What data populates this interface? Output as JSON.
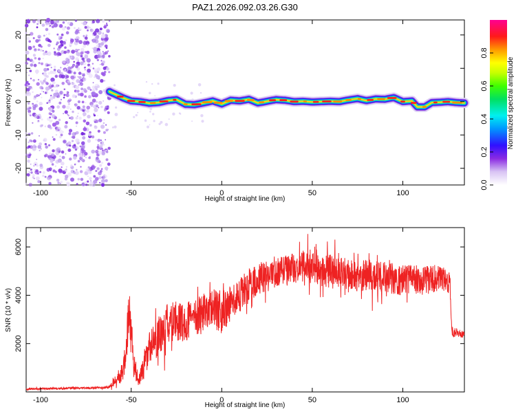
{
  "figure": {
    "title": "PAZ1.2026.092.03.26.G30"
  },
  "colors": {
    "snr_line": "#ee2222",
    "axis": "#000000",
    "background": "#ffffff"
  },
  "chart_data": [
    {
      "type": "heatmap",
      "name": "spectrogram",
      "title": "PAZ1.2026.092.03.26.G30",
      "xlabel": "Height of straight line (km)",
      "ylabel": "Frequency (Hz)",
      "xlim": [
        -108,
        134
      ],
      "ylim": [
        -25,
        24.5
      ],
      "x_ticks": [
        -100,
        -50,
        0,
        50,
        100
      ],
      "x_tick_labels": [
        "-100",
        "-50",
        "0",
        "50",
        "100"
      ],
      "y_ticks": [
        -20,
        -10,
        0,
        10,
        20
      ],
      "y_tick_labels": [
        "-20",
        "-10",
        "0",
        "10",
        "20"
      ],
      "noise_region_x": [
        -108,
        -62
      ],
      "signal_start_x": -62,
      "signal_track": {
        "x": [
          -62,
          -58,
          -54,
          -50,
          -45,
          -40,
          -35,
          -30,
          -25,
          -20,
          -15,
          -10,
          -5,
          0,
          5,
          10,
          15,
          20,
          25,
          30,
          35,
          40,
          45,
          50,
          55,
          60,
          65,
          70,
          75,
          80,
          85,
          90,
          95,
          100,
          105,
          108,
          112,
          116,
          120,
          125,
          130,
          134
        ],
        "y": [
          3.0,
          2.0,
          1.0,
          0.2,
          0.0,
          -0.5,
          -0.3,
          0.3,
          0.6,
          -0.8,
          -0.9,
          -0.4,
          0.2,
          -0.7,
          0.4,
          0.2,
          0.7,
          -0.4,
          0.1,
          0.6,
          0.4,
          0.0,
          0.1,
          -0.1,
          0.0,
          0.1,
          0.0,
          0.5,
          0.9,
          0.3,
          0.8,
          0.7,
          1.2,
          0.0,
          0.2,
          -1.6,
          -1.6,
          -0.3,
          -0.2,
          0.0,
          -0.3,
          -0.4
        ]
      },
      "colorbar": {
        "label": "Normalized spectral amplitude",
        "range": [
          0,
          1
        ],
        "ticks": [
          0.0,
          0.2,
          0.4,
          0.6,
          0.8
        ],
        "tick_labels": [
          "0.0",
          "0.2",
          "0.4",
          "0.6",
          "0.8"
        ]
      }
    },
    {
      "type": "line",
      "name": "snr",
      "xlabel": "Height of straight line (km)",
      "ylabel": "SNR (10 * v/v)",
      "xlim": [
        -108,
        134
      ],
      "ylim": [
        0,
        6800
      ],
      "x_ticks": [
        -100,
        -50,
        0,
        50,
        100
      ],
      "x_tick_labels": [
        "-100",
        "-50",
        "0",
        "50",
        "100"
      ],
      "y_ticks": [
        2000,
        4000,
        6000
      ],
      "y_tick_labels": [
        "2000",
        "4000",
        "6000"
      ],
      "envelope": {
        "x": [
          -108,
          -95,
          -80,
          -65,
          -62,
          -58,
          -55,
          -53,
          -52,
          -51,
          -50,
          -49,
          -48,
          -47,
          -46,
          -45,
          -43,
          -40,
          -35,
          -30,
          -25,
          -20,
          -15,
          -10,
          -5,
          0,
          5,
          10,
          15,
          20,
          25,
          30,
          35,
          40,
          45,
          50,
          55,
          60,
          65,
          70,
          75,
          80,
          85,
          90,
          95,
          100,
          105,
          110,
          115,
          120,
          124,
          126,
          127,
          130,
          134
        ],
        "mean": [
          120,
          140,
          160,
          170,
          220,
          500,
          800,
          1500,
          2600,
          3500,
          2800,
          1500,
          1000,
          700,
          500,
          700,
          1100,
          1800,
          2300,
          2800,
          2900,
          2900,
          3100,
          3300,
          3500,
          3200,
          3700,
          4000,
          4400,
          4700,
          4800,
          5000,
          5000,
          5100,
          5200,
          5100,
          5000,
          5100,
          4900,
          4900,
          4800,
          4850,
          4800,
          4800,
          4700,
          4600,
          4700,
          4600,
          4700,
          4700,
          4600,
          4500,
          2500,
          2450,
          2400
        ],
        "spread": [
          40,
          40,
          40,
          40,
          60,
          250,
          400,
          600,
          800,
          900,
          800,
          500,
          400,
          300,
          300,
          400,
          600,
          750,
          800,
          850,
          850,
          800,
          800,
          800,
          800,
          800,
          750,
          700,
          700,
          650,
          650,
          650,
          650,
          650,
          650,
          650,
          650,
          650,
          650,
          650,
          650,
          650,
          650,
          650,
          650,
          650,
          600,
          600,
          600,
          550,
          500,
          500,
          200,
          200,
          200
        ]
      },
      "noise_seed": 7
    }
  ]
}
